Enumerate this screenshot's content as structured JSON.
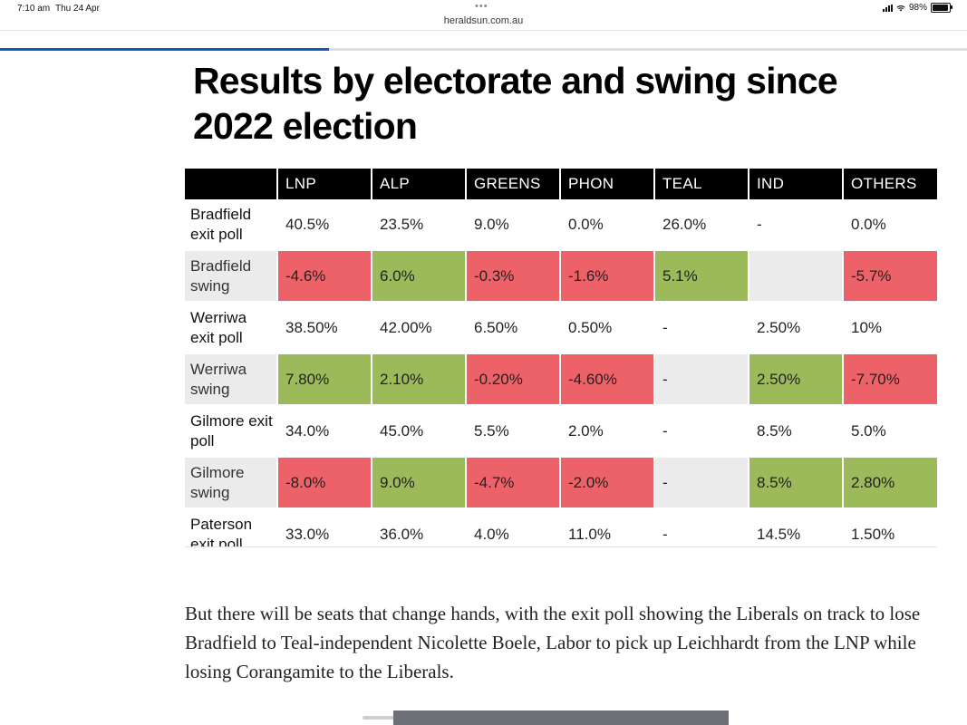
{
  "status_bar": {
    "time": "7:10 am",
    "date": "Thu 24 Apr",
    "dots": "•••",
    "battery": "98%"
  },
  "browser": {
    "url": "heraldsun.com.au",
    "reading_progress": 0.34
  },
  "article": {
    "title": "Results by electorate and swing since 2022 election",
    "paragraph": "But there will be seats that change hands, with the exit poll showing the Liberals on track to lose Bradfield to Teal-independent Nicolette Boele, Labor to pick up Leichhardt from the LNP while losing Corangamite to the Liberals."
  },
  "colors": {
    "negative": "#ed6268",
    "positive": "#9dba5a",
    "header": "#000000",
    "swing_row": "#ebebeb",
    "progress": "#1757b8"
  },
  "table": {
    "headers": [
      "",
      "LNP",
      "ALP",
      "GREENS",
      "PHON",
      "TEAL",
      "IND",
      "OTHERS"
    ],
    "rows": [
      {
        "label": "Bradfield exit poll",
        "type": "poll",
        "cells": [
          "40.5%",
          "23.5%",
          "9.0%",
          "0.0%",
          "26.0%",
          "-",
          "0.0%"
        ],
        "tones": [
          "",
          "",
          "",
          "",
          "",
          "",
          ""
        ]
      },
      {
        "label": "Bradfield swing",
        "type": "swing",
        "cells": [
          "-4.6%",
          "6.0%",
          "-0.3%",
          "-1.6%",
          "5.1%",
          "",
          "-5.7%"
        ],
        "tones": [
          "neg",
          "pos",
          "neg",
          "neg",
          "pos",
          "",
          "neg"
        ]
      },
      {
        "label": "Werriwa exit poll",
        "type": "poll",
        "cells": [
          "38.50%",
          "42.00%",
          "6.50%",
          "0.50%",
          "-",
          "2.50%",
          "10%"
        ],
        "tones": [
          "",
          "",
          "",
          "",
          "",
          "",
          ""
        ]
      },
      {
        "label": "Werriwa swing",
        "type": "swing",
        "cells": [
          "7.80%",
          "2.10%",
          "-0.20%",
          "-4.60%",
          "-",
          "2.50%",
          "-7.70%"
        ],
        "tones": [
          "pos",
          "pos",
          "neg",
          "neg",
          "",
          "pos",
          "neg"
        ]
      },
      {
        "label": "Gilmore exit poll",
        "type": "poll",
        "cells": [
          "34.0%",
          "45.0%",
          "5.5%",
          "2.0%",
          "-",
          "8.5%",
          "5.0%"
        ],
        "tones": [
          "",
          "",
          "",
          "",
          "",
          "",
          ""
        ]
      },
      {
        "label": "Gilmore swing",
        "type": "swing",
        "cells": [
          "-8.0%",
          "9.0%",
          "-4.7%",
          "-2.0%",
          "-",
          "8.5%",
          "2.80%"
        ],
        "tones": [
          "neg",
          "pos",
          "neg",
          "neg",
          "",
          "pos",
          "pos"
        ]
      },
      {
        "label": "Paterson exit poll",
        "type": "poll",
        "cells": [
          "33.0%",
          "36.0%",
          "4.0%",
          "11.0%",
          "-",
          "14.5%",
          "1.50%"
        ],
        "tones": [
          "",
          "",
          "",
          "",
          "",
          "",
          ""
        ]
      }
    ]
  }
}
